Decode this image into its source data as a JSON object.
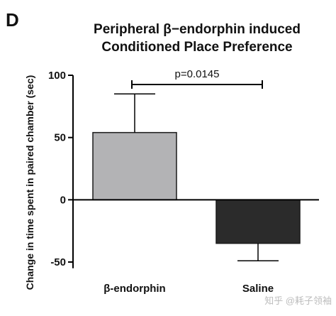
{
  "panel_label": "D",
  "watermark": "知乎 @耗子领袖",
  "chart_data": {
    "type": "bar",
    "title_lines": [
      "Peripheral β−endorphin induced",
      "Conditioned Place Preference"
    ],
    "ylabel": "Change in time spent in paired chamber (sec)",
    "xlabel": "",
    "categories": [
      "β-endorphin",
      "Saline"
    ],
    "values": [
      54,
      -35
    ],
    "error_bars": [
      {
        "low": 54,
        "high": 85
      },
      {
        "low": -49,
        "high": -35
      }
    ],
    "ylim": [
      -55,
      100
    ],
    "yticks": [
      100,
      50,
      0,
      -50
    ],
    "bar_colors": [
      "#b3b3b5",
      "#2b2b2b"
    ],
    "grid": false,
    "legend": "none",
    "annotation": {
      "text": "p=0.0145",
      "between": [
        "β-endorphin",
        "Saline"
      ]
    }
  }
}
